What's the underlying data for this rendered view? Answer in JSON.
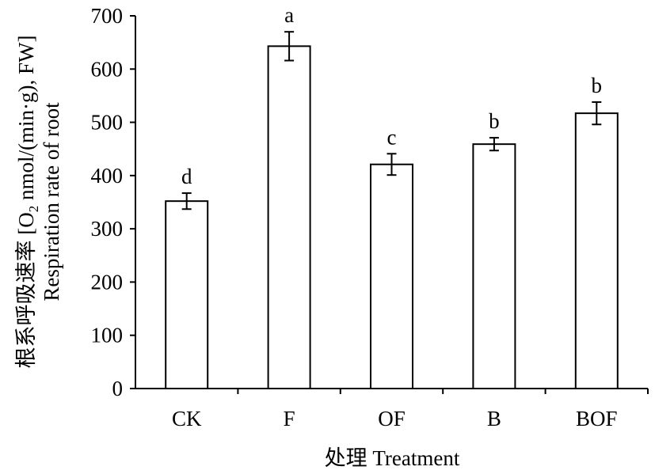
{
  "chart_data": {
    "type": "bar",
    "categories": [
      "CK",
      "F",
      "OF",
      "B",
      "BOF"
    ],
    "values": [
      352,
      643,
      421,
      459,
      517
    ],
    "errors": [
      15,
      27,
      20,
      12,
      21
    ],
    "significance": [
      "d",
      "a",
      "c",
      "b",
      "b"
    ],
    "xlabel": "处理 Treatment",
    "ylabel_line1_pre": "根系呼吸速率 [O",
    "ylabel_line1_sub": "2",
    "ylabel_line1_post": " nmol/(min·g), FW]",
    "ylabel_line2": "Respiration rate of root",
    "ylim": [
      0,
      700
    ],
    "yticks": [
      0,
      100,
      200,
      300,
      400,
      500,
      600,
      700
    ],
    "grid": false,
    "legend": "none",
    "bar_fill": "#ffffff",
    "bar_stroke": "#000000"
  }
}
